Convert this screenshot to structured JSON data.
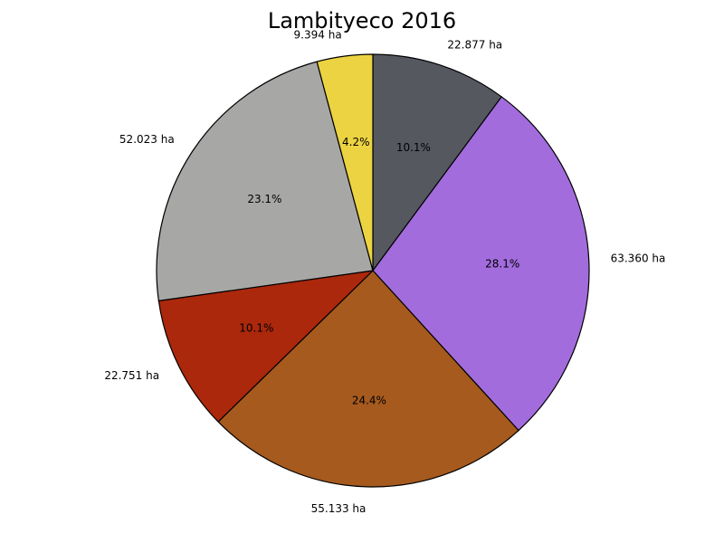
{
  "chart_data": {
    "type": "pie",
    "title": "Lambityeco 2016",
    "slices": [
      {
        "value_label": "22.877 ha",
        "value": 22.877,
        "percent_label": "10.1%",
        "color": "#55585f"
      },
      {
        "value_label": "63.360 ha",
        "value": 63.36,
        "percent_label": "28.1%",
        "color": "#a26cdd"
      },
      {
        "value_label": "55.133 ha",
        "value": 55.133,
        "percent_label": "24.4%",
        "color": "#a65a1e"
      },
      {
        "value_label": "22.751 ha",
        "value": 22.751,
        "percent_label": "10.1%",
        "color": "#ab280c"
      },
      {
        "value_label": "52.023 ha",
        "value": 52.023,
        "percent_label": "23.1%",
        "color": "#a7a8a6"
      },
      {
        "value_label": "9.394 ha",
        "value": 9.394,
        "percent_label": "4.2%",
        "color": "#ecd342"
      }
    ],
    "start_angle": 90,
    "direction": "clockwise",
    "legend": "none",
    "grid": false
  }
}
